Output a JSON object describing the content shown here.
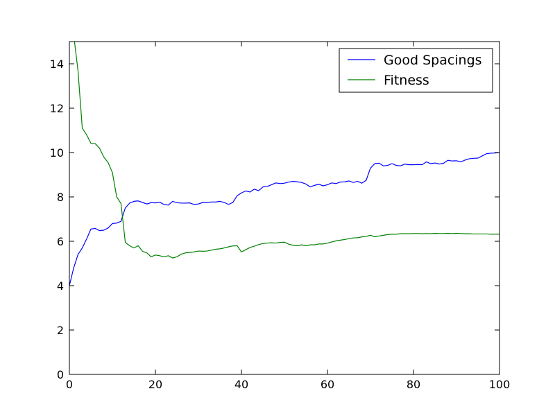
{
  "chart_data": {
    "type": "line",
    "title": "",
    "xlabel": "",
    "ylabel": "",
    "xlim": [
      0,
      100
    ],
    "ylim": [
      0,
      15
    ],
    "xticks": [
      0,
      20,
      40,
      60,
      80,
      100
    ],
    "yticks": [
      0,
      2,
      4,
      6,
      8,
      10,
      12,
      14
    ],
    "legend_position": "top-right",
    "grid": false,
    "series": [
      {
        "name": "Good Spacings",
        "color": "#0000ff",
        "x": [
          0,
          1,
          2,
          3,
          4,
          5,
          6,
          7,
          8,
          9,
          10,
          11,
          12,
          13,
          14,
          15,
          16,
          17,
          18,
          19,
          20,
          21,
          22,
          23,
          24,
          25,
          26,
          27,
          28,
          29,
          30,
          31,
          32,
          33,
          34,
          35,
          36,
          37,
          38,
          39,
          40,
          41,
          42,
          43,
          44,
          45,
          46,
          47,
          48,
          49,
          50,
          51,
          52,
          53,
          54,
          55,
          56,
          57,
          58,
          59,
          60,
          61,
          62,
          63,
          64,
          65,
          66,
          67,
          68,
          69,
          70,
          71,
          72,
          73,
          74,
          75,
          76,
          77,
          78,
          79,
          80,
          81,
          82,
          83,
          84,
          85,
          86,
          87,
          88,
          89,
          90,
          91,
          92,
          93,
          94,
          95,
          96,
          97,
          98,
          99,
          100
        ],
        "y": [
          4.0,
          4.8,
          5.4,
          5.7,
          6.1,
          6.55,
          6.58,
          6.48,
          6.5,
          6.6,
          6.8,
          6.82,
          6.9,
          7.5,
          7.72,
          7.8,
          7.82,
          7.75,
          7.68,
          7.74,
          7.73,
          7.76,
          7.66,
          7.63,
          7.8,
          7.74,
          7.72,
          7.72,
          7.73,
          7.66,
          7.68,
          7.75,
          7.75,
          7.77,
          7.77,
          7.8,
          7.75,
          7.66,
          7.75,
          8.05,
          8.18,
          8.27,
          8.22,
          8.35,
          8.28,
          8.45,
          8.47,
          8.55,
          8.63,
          8.6,
          8.62,
          8.67,
          8.7,
          8.68,
          8.65,
          8.58,
          8.45,
          8.52,
          8.57,
          8.5,
          8.55,
          8.63,
          8.6,
          8.67,
          8.68,
          8.72,
          8.65,
          8.7,
          8.62,
          8.75,
          9.3,
          9.5,
          9.52,
          9.4,
          9.42,
          9.5,
          9.42,
          9.4,
          9.48,
          9.45,
          9.45,
          9.46,
          9.45,
          9.58,
          9.5,
          9.53,
          9.48,
          9.52,
          9.65,
          9.62,
          9.63,
          9.58,
          9.66,
          9.72,
          9.74,
          9.75,
          9.85,
          9.95,
          9.97,
          9.98,
          10.0
        ]
      },
      {
        "name": "Fitness",
        "color": "#008000",
        "x": [
          1,
          2,
          3,
          4,
          5,
          6,
          7,
          8,
          9,
          10,
          11,
          12,
          13,
          14,
          15,
          16,
          17,
          18,
          19,
          20,
          21,
          22,
          23,
          24,
          25,
          26,
          27,
          28,
          29,
          30,
          31,
          32,
          33,
          34,
          35,
          36,
          37,
          38,
          39,
          40,
          41,
          42,
          43,
          44,
          45,
          46,
          47,
          48,
          49,
          50,
          51,
          52,
          53,
          54,
          55,
          56,
          57,
          58,
          59,
          60,
          61,
          62,
          63,
          64,
          65,
          66,
          67,
          68,
          69,
          70,
          71,
          72,
          73,
          74,
          75,
          76,
          77,
          78,
          79,
          80,
          81,
          82,
          83,
          84,
          85,
          86,
          87,
          88,
          89,
          90,
          91,
          92,
          93,
          94,
          95,
          96,
          97,
          98,
          99,
          100
        ],
        "y": [
          15.3,
          13.7,
          11.1,
          10.8,
          10.42,
          10.4,
          10.2,
          9.8,
          9.55,
          9.1,
          8.0,
          7.7,
          5.95,
          5.8,
          5.7,
          5.8,
          5.55,
          5.48,
          5.3,
          5.38,
          5.35,
          5.3,
          5.35,
          5.25,
          5.3,
          5.42,
          5.48,
          5.5,
          5.52,
          5.56,
          5.55,
          5.56,
          5.6,
          5.64,
          5.66,
          5.7,
          5.75,
          5.79,
          5.8,
          5.52,
          5.62,
          5.72,
          5.78,
          5.85,
          5.9,
          5.92,
          5.93,
          5.92,
          5.95,
          5.96,
          5.87,
          5.82,
          5.8,
          5.84,
          5.8,
          5.84,
          5.84,
          5.88,
          5.88,
          5.92,
          5.97,
          6.02,
          6.05,
          6.08,
          6.12,
          6.15,
          6.16,
          6.2,
          6.22,
          6.27,
          6.2,
          6.24,
          6.27,
          6.3,
          6.32,
          6.32,
          6.34,
          6.34,
          6.34,
          6.35,
          6.35,
          6.34,
          6.35,
          6.34,
          6.36,
          6.35,
          6.35,
          6.36,
          6.35,
          6.36,
          6.35,
          6.34,
          6.34,
          6.33,
          6.33,
          6.33,
          6.33,
          6.32,
          6.32,
          6.32
        ]
      }
    ]
  }
}
